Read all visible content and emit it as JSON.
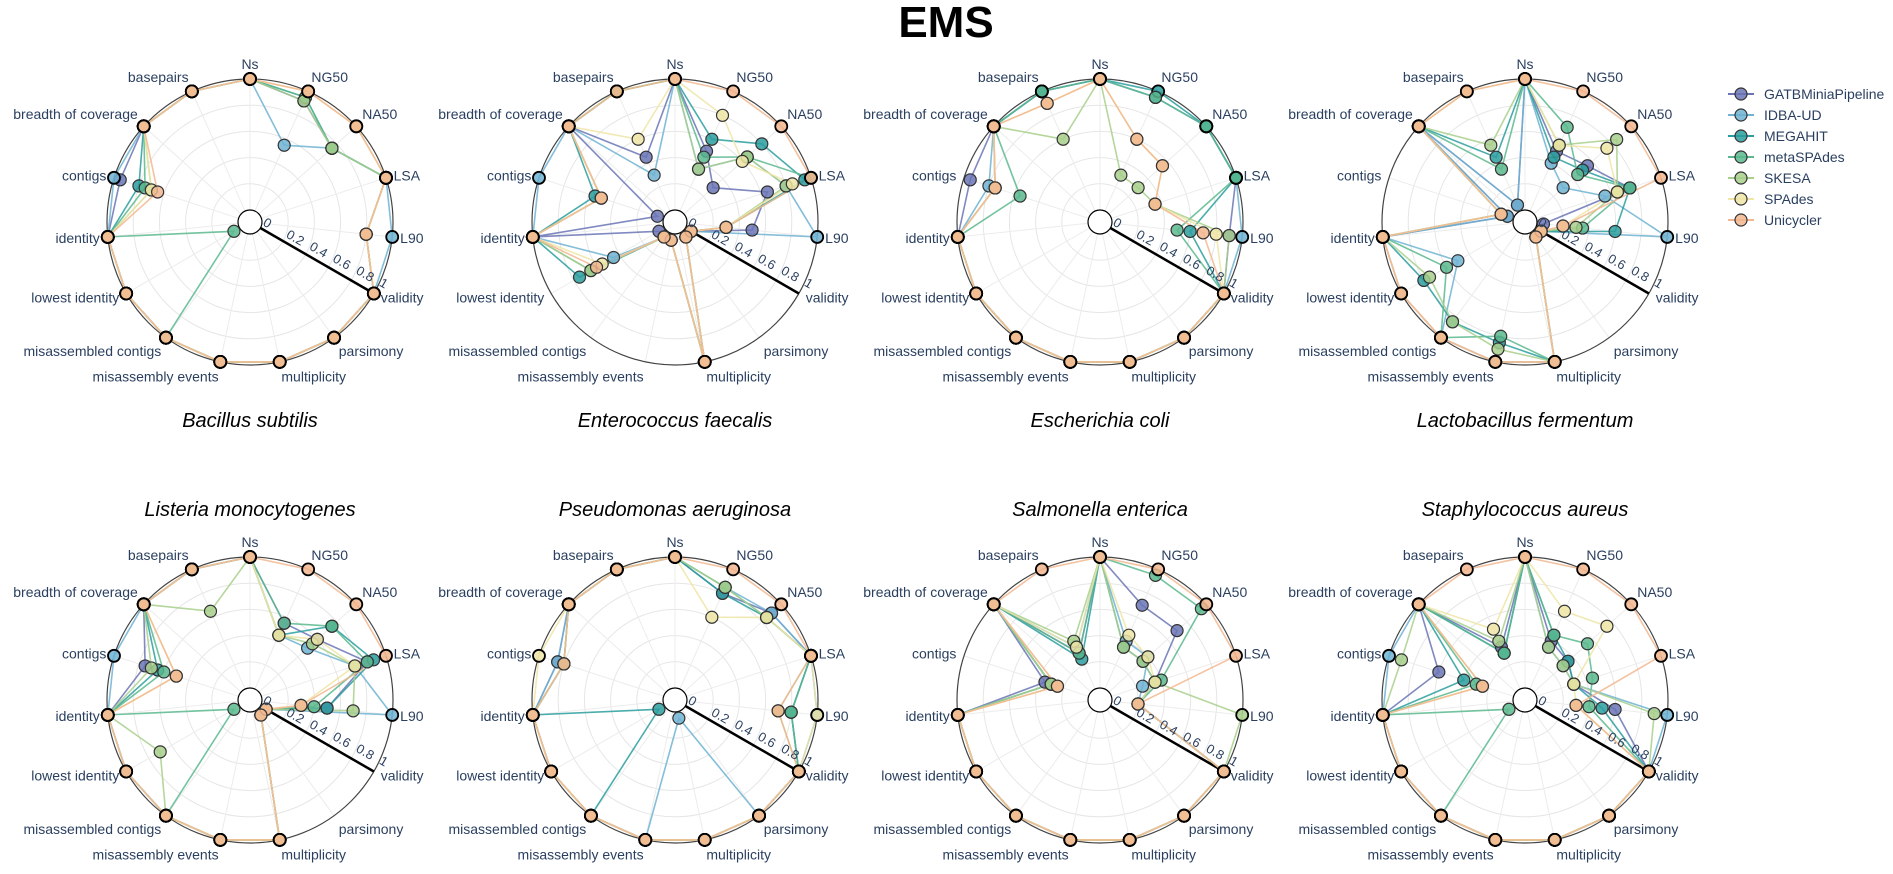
{
  "title": "EMS",
  "legend": {
    "placement": "top-right",
    "entries": [
      {
        "name": "GATBMiniaPipeline",
        "color": "#6a74b5"
      },
      {
        "name": "IDBA-UD",
        "color": "#6fb3d2"
      },
      {
        "name": "MEGAHIT",
        "color": "#2a9d9e"
      },
      {
        "name": "metaSPAdes",
        "color": "#5bb88e"
      },
      {
        "name": "SKESA",
        "color": "#a8cf8c"
      },
      {
        "name": "SPAdes",
        "color": "#efe5a6"
      },
      {
        "name": "Unicycler",
        "color": "#f2b78f"
      }
    ]
  },
  "chart_data": {
    "type": "polar",
    "theta": [
      "Ns",
      "NG50",
      "NA50",
      "LSA",
      "L90",
      "validity",
      "parsimony",
      "multiplicity",
      "misassembly events",
      "misassembled contigs",
      "lowest identity",
      "identity",
      "contigs",
      "breadth of coverage",
      "basepairs"
    ],
    "radial_ticks": [
      "0",
      "0.2",
      "0.4",
      "0.6",
      "0.8",
      "1"
    ],
    "radial_range": [
      0,
      1
    ],
    "series_names": [
      "GATBMiniaPipeline",
      "IDBA-UD",
      "MEGAHIT",
      "metaSPAdes",
      "SKESA",
      "SPAdes",
      "Unicycler"
    ],
    "panels": [
      {
        "title": "Bacillus subtilis",
        "series": [
          [
            1,
            0.92,
            0.75,
            1,
            0.8,
            1,
            1,
            1,
            1,
            1,
            1,
            1,
            0.95,
            1,
            1
          ],
          [
            1,
            0.55,
            0.75,
            1,
            1,
            1,
            1,
            1,
            1,
            1,
            1,
            1,
            1,
            1,
            1
          ],
          [
            1,
            0.95,
            0.75,
            1,
            0.8,
            1,
            1,
            1,
            1,
            1,
            1,
            1,
            0.8,
            1,
            1
          ],
          [
            1,
            0.95,
            0.75,
            1,
            0.8,
            1,
            1,
            1,
            1,
            1,
            0.05,
            1,
            0.75,
            1,
            1
          ],
          [
            1,
            0.92,
            0.75,
            1,
            0.8,
            1,
            1,
            1,
            1,
            1,
            1,
            1,
            0.7,
            1,
            1
          ],
          [
            1,
            1,
            1,
            1,
            0.8,
            1,
            1,
            1,
            1,
            1,
            1,
            1,
            0.7,
            1,
            1
          ],
          [
            1,
            1,
            1,
            1,
            0.8,
            1,
            1,
            1,
            1,
            1,
            1,
            1,
            0.65,
            1,
            1
          ]
        ]
      },
      {
        "title": "Enterococcus faecalis",
        "series": [
          [
            1,
            0.5,
            0.3,
            0.65,
            0.5,
            0.05,
            0.05,
            1,
            0.05,
            0.05,
            0.05,
            1,
            0.05,
            1,
            0.45
          ],
          [
            1,
            0.35,
            0.65,
            0.8,
            1,
            0.05,
            0.05,
            1,
            0.05,
            0.05,
            0.45,
            1,
            1,
            1,
            0.3
          ],
          [
            1,
            0.6,
            0.8,
            0.95,
            0.3,
            0.05,
            0.05,
            1,
            0.05,
            0.05,
            0.75,
            1,
            0.55,
            1,
            1
          ],
          [
            1,
            0.45,
            0.65,
            1,
            0.3,
            0.05,
            0.05,
            1,
            0.05,
            0.05,
            0.65,
            1,
            0.5,
            1,
            1
          ],
          [
            1,
            0.35,
            0.65,
            0.8,
            0.3,
            0.05,
            0.05,
            1,
            0.05,
            0.05,
            0.65,
            1,
            0.5,
            1,
            1
          ],
          [
            1,
            0.8,
            0.6,
            0.85,
            0.3,
            0.05,
            0.05,
            1,
            0.05,
            0.05,
            0.55,
            1,
            0.5,
            1,
            0.6
          ],
          [
            1,
            1,
            1,
            1,
            0.3,
            0.05,
            0.05,
            1,
            0.05,
            0.05,
            0.6,
            1,
            0.5,
            1,
            1
          ]
        ]
      },
      {
        "title": "Escherichia coli",
        "series": [
          [
            1,
            0.95,
            1,
            1,
            0.9,
            1,
            1,
            1,
            1,
            1,
            1,
            1,
            0.95,
            1,
            1
          ],
          [
            1,
            0.95,
            1,
            1,
            1,
            1,
            1,
            1,
            1,
            1,
            1,
            1,
            0.8,
            1,
            1
          ],
          [
            1,
            1,
            1,
            1,
            0.6,
            1,
            1,
            1,
            1,
            1,
            1,
            1,
            0.75,
            1,
            1
          ],
          [
            1,
            0.95,
            1,
            1,
            0.5,
            1,
            1,
            1,
            1,
            1,
            1,
            1,
            0.55,
            1,
            1
          ],
          [
            1,
            0.3,
            0.3,
            0.35,
            0.9,
            1,
            1,
            1,
            1,
            1,
            1,
            1,
            0.75,
            1,
            0.6
          ],
          [
            1,
            0.6,
            0.55,
            0.35,
            0.8,
            1,
            1,
            1,
            1,
            1,
            1,
            1,
            0.75,
            1,
            0.9
          ],
          [
            1,
            0.6,
            0.55,
            0.35,
            0.7,
            1,
            1,
            1,
            1,
            1,
            1,
            1,
            0.75,
            1,
            0.9
          ]
        ]
      },
      {
        "title": "Lactobacillus fermentum",
        "series": [
          [
            1,
            0.5,
            0.55,
            0.75,
            0.05,
            0.05,
            0.05,
            1,
            1,
            1,
            1,
            1,
            0.05,
            1,
            0.05
          ],
          [
            1,
            0.4,
            0.3,
            0.55,
            1,
            0.05,
            0.05,
            1,
            1,
            1,
            0.5,
            1,
            0.05,
            1,
            0.05
          ],
          [
            1,
            0.45,
            0.5,
            0.75,
            0.6,
            0.05,
            0.05,
            1,
            0.85,
            0.85,
            0.8,
            1,
            0.1,
            1,
            0.45
          ],
          [
            1,
            0.7,
            0.45,
            0.75,
            0.35,
            0.05,
            0.05,
            1,
            0.8,
            1,
            0.6,
            1,
            0.1,
            1,
            0.35
          ],
          [
            1,
            0.55,
            0.85,
            0.65,
            0.3,
            0.05,
            0.05,
            1,
            0.9,
            0.85,
            0.75,
            1,
            0.1,
            1,
            0.55
          ],
          [
            1,
            0.55,
            0.75,
            0.65,
            0.2,
            0.05,
            0.05,
            1,
            1,
            1,
            1,
            1,
            0.1,
            1,
            1
          ],
          [
            1,
            1,
            1,
            1,
            0.2,
            0.05,
            0.05,
            1,
            1,
            1,
            1,
            1,
            0.1,
            1,
            1
          ]
        ]
      },
      {
        "title": "Listeria monocytogenes",
        "series": [
          [
            1,
            0.55,
            0.6,
            0.85,
            0.5,
            0.05,
            0.05,
            1,
            1,
            1,
            1,
            1,
            0.75,
            1,
            1
          ],
          [
            1,
            0.45,
            0.5,
            0.75,
            1,
            0.05,
            0.05,
            1,
            1,
            1,
            1,
            1,
            1,
            1,
            1
          ],
          [
            1,
            0.45,
            0.75,
            0.9,
            0.5,
            0.05,
            0.05,
            1,
            1,
            1,
            1,
            1,
            0.65,
            1,
            1
          ],
          [
            1,
            0.55,
            0.75,
            0.85,
            0.4,
            0.05,
            0.05,
            1,
            1,
            1,
            0.05,
            1,
            0.6,
            1,
            1
          ],
          [
            1,
            0.45,
            0.55,
            0.75,
            0.7,
            0.05,
            0.05,
            1,
            1,
            1,
            0.7,
            1,
            0.7,
            1,
            0.65
          ],
          [
            1,
            0.45,
            0.6,
            0.75,
            0.3,
            0.05,
            0.05,
            1,
            1,
            1,
            1,
            1,
            0.5,
            1,
            1
          ],
          [
            1,
            1,
            1,
            1,
            0.3,
            0.05,
            0.05,
            1,
            1,
            1,
            1,
            1,
            0.5,
            1,
            1
          ]
        ]
      },
      {
        "title": "Pseudomonas aeruginosa",
        "series": [
          [
            1,
            0.8,
            0.9,
            1,
            0.8,
            1,
            1,
            1,
            1,
            1,
            1,
            1,
            0.85,
            1,
            1
          ],
          [
            1,
            0.85,
            0.9,
            1,
            1,
            1,
            1,
            0.05,
            1,
            1,
            1,
            1,
            0.85,
            1,
            1
          ],
          [
            1,
            0.8,
            0.85,
            1,
            0.8,
            1,
            1,
            1,
            1,
            1,
            0.05,
            1,
            0.8,
            1,
            1
          ],
          [
            1,
            0.85,
            0.85,
            1,
            0.8,
            1,
            1,
            1,
            1,
            1,
            1,
            1,
            0.8,
            1,
            1
          ],
          [
            1,
            0.85,
            0.85,
            1,
            0.7,
            1,
            1,
            1,
            1,
            1,
            1,
            1,
            0.8,
            1,
            1
          ],
          [
            1,
            0.6,
            0.85,
            1,
            1,
            1,
            1,
            1,
            1,
            1,
            1,
            1,
            1,
            1,
            1
          ],
          [
            1,
            1,
            1,
            1,
            0.7,
            1,
            1,
            1,
            1,
            1,
            1,
            1,
            0.8,
            1,
            1
          ]
        ]
      },
      {
        "title": "Salmonella enterica",
        "series": [
          [
            1,
            0.7,
            0.7,
            0.35,
            0.2,
            1,
            1,
            1,
            1,
            1,
            1,
            1,
            0.35,
            1,
            0.3
          ],
          [
            1,
            0.4,
            0.4,
            0.25,
            0.2,
            1,
            1,
            1,
            1,
            1,
            1,
            1,
            0.3,
            1,
            0.35
          ],
          [
            1,
            0.35,
            0.35,
            0.35,
            0.2,
            1,
            1,
            1,
            1,
            1,
            1,
            1,
            0.3,
            1,
            0.25
          ],
          [
            1,
            0.95,
            0.95,
            0.4,
            0.2,
            1,
            1,
            1,
            1,
            1,
            1,
            1,
            0.3,
            1,
            0.3
          ],
          [
            1,
            0.35,
            0.35,
            0.35,
            1,
            1,
            1,
            1,
            1,
            1,
            1,
            1,
            0.3,
            1,
            0.4
          ],
          [
            1,
            0.45,
            0.4,
            0.35,
            0.2,
            1,
            1,
            1,
            1,
            1,
            1,
            1,
            0.25,
            1,
            0.35
          ],
          [
            1,
            1,
            1,
            1,
            0.2,
            1,
            1,
            1,
            1,
            1,
            1,
            1,
            0.25,
            1,
            1
          ]
        ]
      },
      {
        "title": "Staphylococcus aureus",
        "series": [
          [
            1,
            0.4,
            0.35,
            0.3,
            0.6,
            1,
            1,
            1,
            1,
            1,
            1,
            1,
            0.6,
            1,
            0.35
          ],
          [
            1,
            0.35,
            0.3,
            0.3,
            1,
            1,
            1,
            1,
            1,
            1,
            1,
            1,
            1,
            1,
            0.3
          ],
          [
            1,
            0.45,
            0.35,
            0.3,
            0.5,
            1,
            1,
            1,
            1,
            1,
            1,
            1,
            0.4,
            1,
            0.3
          ],
          [
            1,
            0.45,
            0.55,
            0.45,
            0.4,
            1,
            1,
            1,
            1,
            1,
            0.05,
            1,
            0.3,
            1,
            0.3
          ],
          [
            1,
            0.35,
            0.3,
            0.3,
            0.9,
            1,
            1,
            1,
            1,
            1,
            1,
            1,
            0.9,
            1,
            0.4
          ],
          [
            1,
            0.65,
            0.75,
            0.3,
            0.3,
            1,
            1,
            1,
            1,
            1,
            1,
            1,
            0.25,
            1,
            0.5
          ],
          [
            1,
            1,
            1,
            1,
            0.3,
            1,
            1,
            1,
            1,
            1,
            1,
            1,
            0.25,
            1,
            1
          ]
        ]
      }
    ]
  }
}
